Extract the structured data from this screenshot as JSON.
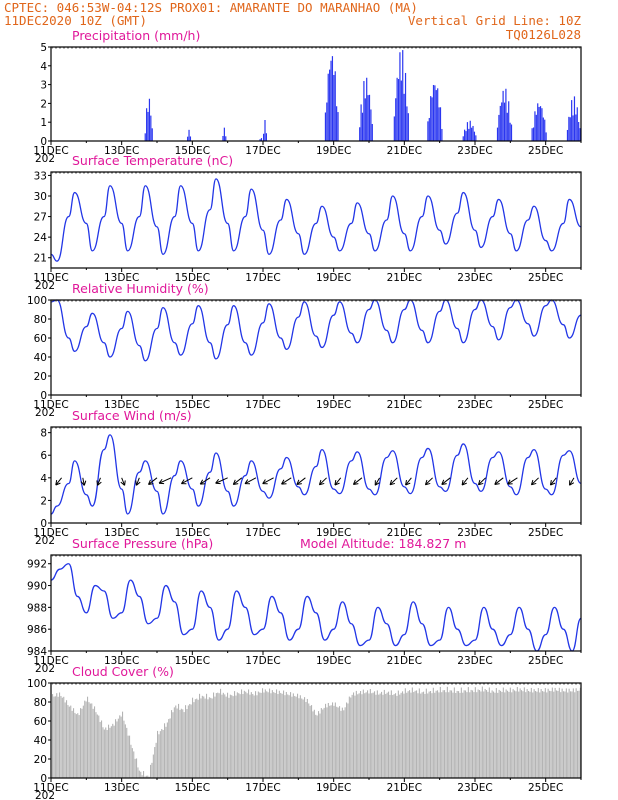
{
  "header": {
    "line1_left": "CPTEC:  046:53W-04:12S  PROX01: AMARANTE DO MARANHAO (MA)",
    "line2_left": "11DEC2020 10Z (GMT)",
    "line2_right": "Vertical Grid Line: 10Z",
    "line3_right": "TQ0126L028"
  },
  "x_axis": {
    "labels": [
      "11DEC",
      "13DEC",
      "15DEC",
      "17DEC",
      "19DEC",
      "21DEC",
      "23DEC",
      "25DEC"
    ],
    "year_stub": "202",
    "range_days": [
      0,
      15
    ]
  },
  "colors": {
    "header": "#e0661b",
    "title": "#e0189a",
    "line": "#2236e6",
    "bar": "#2a36f0",
    "cloud": "#b4b4b4",
    "frame": "#000000"
  },
  "chart_data": [
    {
      "type": "bar",
      "title": "Precipitation (mm/h)",
      "ylim": [
        0,
        5
      ],
      "yticks": [
        "0",
        "1",
        "2",
        "3",
        "4",
        "5"
      ],
      "x_unit": "days since 11DEC 10Z",
      "bursts": [
        {
          "x": 2.65,
          "w": 0.25,
          "peak": 2.4
        },
        {
          "x": 3.85,
          "w": 0.1,
          "peak": 0.8
        },
        {
          "x": 4.85,
          "w": 0.1,
          "peak": 0.9
        },
        {
          "x": 5.9,
          "w": 0.08,
          "peak": 0.5
        },
        {
          "x": 6.0,
          "w": 0.12,
          "peak": 1.4
        },
        {
          "x": 7.75,
          "w": 0.4,
          "peak": 5.0
        },
        {
          "x": 8.72,
          "w": 0.38,
          "peak": 3.5
        },
        {
          "x": 9.7,
          "w": 0.42,
          "peak": 5.0
        },
        {
          "x": 10.65,
          "w": 0.42,
          "peak": 3.4
        },
        {
          "x": 11.65,
          "w": 0.4,
          "peak": 1.1
        },
        {
          "x": 12.62,
          "w": 0.42,
          "peak": 2.9
        },
        {
          "x": 13.6,
          "w": 0.45,
          "peak": 2.2
        },
        {
          "x": 14.6,
          "w": 0.4,
          "peak": 2.4
        }
      ]
    },
    {
      "type": "line",
      "title": "Surface Temperature (nC)",
      "ylim": [
        19.5,
        33.5
      ],
      "yticks": [
        "21",
        "24",
        "27",
        "30",
        "33"
      ],
      "x_days": [
        0,
        0.17,
        0.5,
        0.67,
        1,
        1.17,
        1.5,
        1.67,
        2,
        2.17,
        2.5,
        2.67,
        3,
        3.17,
        3.5,
        3.67,
        4,
        4.17,
        4.5,
        4.67,
        5,
        5.17,
        5.5,
        5.67,
        6,
        6.17,
        6.5,
        6.67,
        7,
        7.17,
        7.5,
        7.67,
        8,
        8.17,
        8.5,
        8.67,
        9,
        9.17,
        9.5,
        9.67,
        10,
        10.17,
        10.5,
        10.67,
        11,
        11.17,
        11.5,
        11.67,
        12,
        12.17,
        12.5,
        12.67,
        13,
        13.17,
        13.5,
        13.67,
        14,
        14.17,
        14.5,
        14.67,
        15
      ],
      "values": [
        21.5,
        20.5,
        27,
        30.5,
        26,
        22,
        27,
        31.5,
        26,
        22,
        27,
        31.5,
        25.5,
        21.5,
        27,
        31.5,
        26,
        22,
        28,
        32.5,
        26,
        22,
        27,
        31,
        25,
        21.5,
        26.5,
        29.5,
        24.5,
        21.5,
        26,
        28.5,
        24,
        22,
        26,
        29,
        24.5,
        22,
        26.5,
        30,
        24.5,
        22,
        27,
        30,
        25,
        23,
        27.5,
        30.5,
        25,
        22.5,
        27,
        29.5,
        24.5,
        22,
        26.5,
        28.5,
        23.5,
        22,
        26,
        29.5,
        25.5
      ]
    },
    {
      "type": "line",
      "title": "Relative Humidity (%)",
      "ylim": [
        0,
        100
      ],
      "yticks": [
        "0",
        "20",
        "40",
        "60",
        "80",
        "100"
      ],
      "x_days": [
        0,
        0.17,
        0.5,
        0.67,
        1,
        1.17,
        1.5,
        1.67,
        2,
        2.17,
        2.5,
        2.67,
        3,
        3.17,
        3.5,
        3.67,
        4,
        4.17,
        4.5,
        4.67,
        5,
        5.17,
        5.5,
        5.67,
        6,
        6.17,
        6.5,
        6.67,
        7,
        7.17,
        7.5,
        7.67,
        8,
        8.17,
        8.5,
        8.67,
        9,
        9.17,
        9.5,
        9.67,
        10,
        10.17,
        10.5,
        10.67,
        11,
        11.17,
        11.5,
        11.67,
        12,
        12.17,
        12.5,
        12.67,
        13,
        13.17,
        13.5,
        13.67,
        14,
        14.17,
        14.5,
        14.67,
        15
      ],
      "values": [
        98,
        100,
        60,
        46,
        72,
        86,
        55,
        40,
        70,
        88,
        52,
        36,
        70,
        92,
        55,
        42,
        75,
        94,
        55,
        38,
        74,
        94,
        55,
        42,
        76,
        96,
        60,
        48,
        82,
        98,
        62,
        50,
        84,
        98,
        65,
        55,
        90,
        100,
        68,
        55,
        90,
        100,
        68,
        55,
        88,
        100,
        70,
        55,
        90,
        100,
        72,
        58,
        92,
        100,
        75,
        62,
        94,
        100,
        74,
        60,
        84
      ]
    },
    {
      "type": "line",
      "title": "Surface Wind (m/s)",
      "ylim": [
        0,
        8.5
      ],
      "yticks": [
        "0",
        "2",
        "4",
        "6",
        "8"
      ],
      "x_days": [
        0,
        0.17,
        0.5,
        0.67,
        1,
        1.17,
        1.5,
        1.67,
        2,
        2.17,
        2.5,
        2.67,
        3,
        3.17,
        3.5,
        3.67,
        4,
        4.17,
        4.5,
        4.67,
        5,
        5.17,
        5.5,
        5.67,
        6,
        6.17,
        6.5,
        6.67,
        7,
        7.17,
        7.5,
        7.67,
        8,
        8.17,
        8.5,
        8.67,
        9,
        9.17,
        9.5,
        9.67,
        10,
        10.17,
        10.5,
        10.67,
        11,
        11.17,
        11.5,
        11.67,
        12,
        12.17,
        12.5,
        12.67,
        13,
        13.17,
        13.5,
        13.67,
        14,
        14.17,
        14.5,
        14.67,
        15
      ],
      "values": [
        0.8,
        1.5,
        3.5,
        5.5,
        2.5,
        1.5,
        6.5,
        7.8,
        3,
        0.8,
        4.5,
        5.5,
        2.8,
        0.8,
        4.2,
        5.5,
        3,
        1.5,
        4.5,
        6.2,
        2.8,
        1.5,
        4.2,
        5.5,
        2.8,
        2.2,
        4.8,
        5.8,
        3.2,
        2.5,
        5,
        6.5,
        3,
        2.6,
        5.5,
        6.3,
        3,
        2.5,
        5.8,
        6.4,
        3.2,
        2.6,
        5.8,
        6.6,
        3.2,
        2.8,
        6,
        7,
        3.5,
        2.8,
        5.8,
        6.3,
        3.2,
        2.5,
        5.8,
        6.5,
        3,
        2.5,
        6,
        6.4,
        3.5
      ],
      "arrow_days": [
        0.3,
        0.9,
        1.4,
        2.0,
        2.5,
        3.0,
        3.4,
        4.0,
        4.5,
        5.0,
        5.4,
        5.8,
        6.3,
        6.8,
        7.2,
        7.8,
        8.2,
        8.8,
        9.3,
        9.8,
        10.2,
        10.8,
        11.3,
        11.8,
        12.3,
        12.8,
        13.2,
        13.8,
        14.3,
        14.8
      ],
      "arrow_level": 4,
      "arrow_dir_deg": [
        70,
        95,
        80,
        100,
        80,
        60,
        45,
        50,
        55,
        45,
        60,
        50,
        50,
        55,
        60,
        65,
        70,
        60,
        75,
        65,
        70,
        65,
        60,
        70,
        65,
        60,
        55,
        65,
        70,
        75
      ]
    },
    {
      "type": "line",
      "title": "Surface Pressure (hPa)",
      "annotation": "Model Altitude: 184.827 m",
      "ylim": [
        984,
        992.8
      ],
      "yticks": [
        "984",
        "986",
        "988",
        "990",
        "992"
      ],
      "x_days": [
        0,
        0.25,
        0.5,
        0.75,
        1,
        1.25,
        1.5,
        1.75,
        2,
        2.25,
        2.5,
        2.75,
        3,
        3.25,
        3.5,
        3.75,
        4,
        4.25,
        4.5,
        4.75,
        5,
        5.25,
        5.5,
        5.75,
        6,
        6.25,
        6.5,
        6.75,
        7,
        7.25,
        7.5,
        7.75,
        8,
        8.25,
        8.5,
        8.75,
        9,
        9.25,
        9.5,
        9.75,
        10,
        10.25,
        10.5,
        10.75,
        11,
        11.25,
        11.5,
        11.75,
        12,
        12.25,
        12.5,
        12.75,
        13,
        13.25,
        13.5,
        13.75,
        14,
        14.25,
        14.5,
        14.75,
        15
      ],
      "values": [
        990.5,
        991.5,
        992,
        989,
        987.5,
        990,
        989.5,
        987,
        987.5,
        990.5,
        989,
        986.5,
        987,
        990,
        988.5,
        985.5,
        986,
        989.5,
        988,
        985,
        986,
        989.5,
        988,
        985.5,
        986,
        989,
        987.5,
        985,
        986,
        989,
        987.5,
        985,
        986,
        988.5,
        986.5,
        984.5,
        985,
        988,
        986.5,
        984.5,
        985.5,
        988.5,
        986.5,
        984.5,
        985,
        988,
        986,
        984.5,
        985,
        988,
        986,
        984.5,
        985.5,
        988,
        986,
        984,
        985.5,
        988,
        986,
        984,
        987
      ]
    },
    {
      "type": "area",
      "title": "Cloud Cover (%)",
      "ylim": [
        0,
        100
      ],
      "yticks": [
        "0",
        "20",
        "40",
        "60",
        "80",
        "100"
      ],
      "x_days": [
        0,
        0.25,
        0.5,
        0.75,
        1,
        1.25,
        1.5,
        1.75,
        2,
        2.25,
        2.5,
        2.75,
        3,
        3.25,
        3.5,
        3.75,
        4,
        4.25,
        4.5,
        4.75,
        5,
        5.25,
        5.5,
        5.75,
        6,
        6.25,
        6.5,
        6.75,
        7,
        7.25,
        7.5,
        7.75,
        8,
        8.25,
        8.5,
        8.75,
        9,
        9.25,
        9.5,
        9.75,
        10,
        10.25,
        10.5,
        10.75,
        11,
        11.25,
        11.5,
        11.75,
        12,
        12.25,
        12.5,
        12.75,
        13,
        13.25,
        13.5,
        13.75,
        14,
        14.25,
        14.5,
        14.75,
        15
      ],
      "values": [
        90,
        92,
        80,
        70,
        88,
        75,
        55,
        60,
        72,
        40,
        10,
        5,
        50,
        60,
        80,
        75,
        85,
        90,
        88,
        95,
        90,
        93,
        95,
        92,
        96,
        95,
        94,
        92,
        90,
        85,
        70,
        80,
        82,
        75,
        92,
        94,
        95,
        93,
        94,
        92,
        95,
        96,
        94,
        95,
        96,
        96,
        95,
        96,
        96,
        97,
        95,
        96,
        96,
        97,
        96,
        96,
        96,
        97,
        96,
        96,
        97
      ]
    }
  ]
}
